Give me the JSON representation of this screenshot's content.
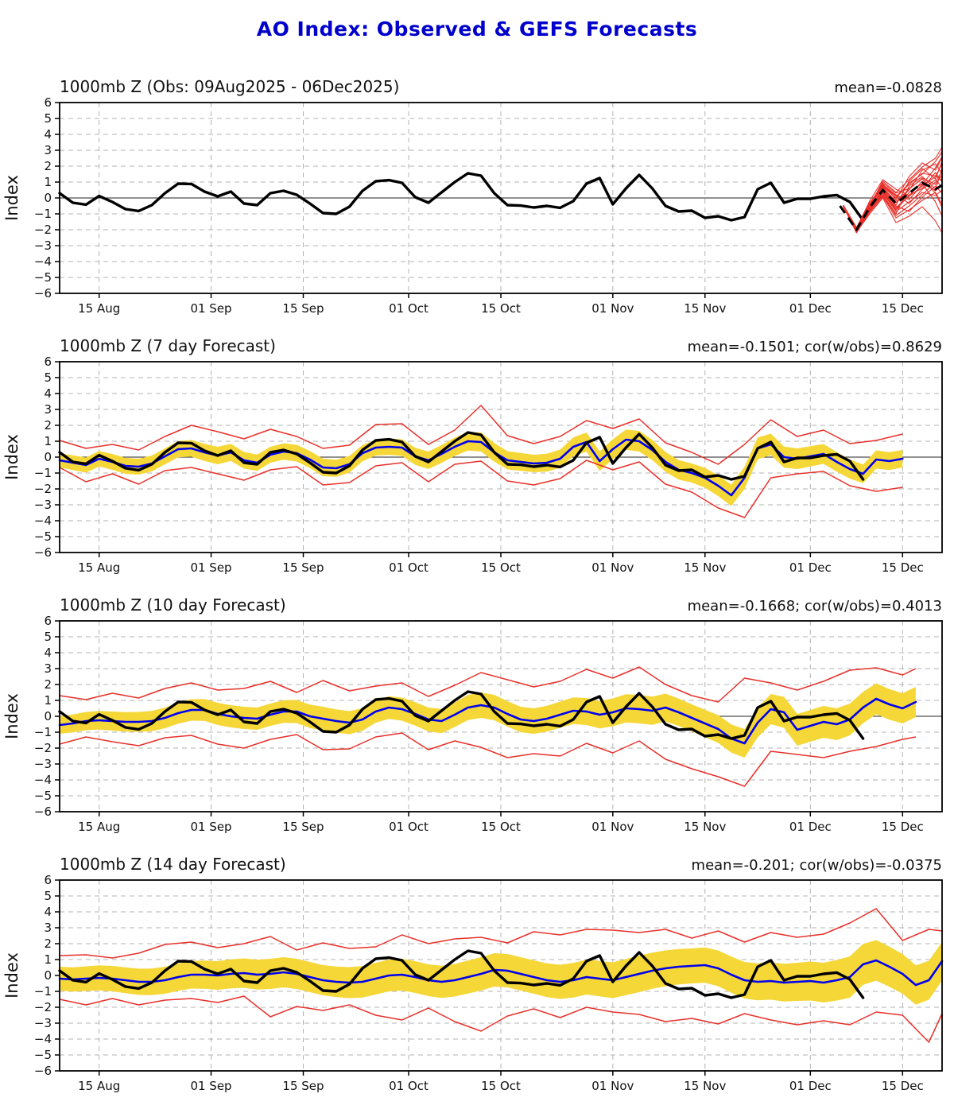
{
  "page": {
    "title": "AO Index: Observed & GEFS Forecasts",
    "title_color": "#0000CC"
  },
  "colors": {
    "observed": "#000000",
    "forecast_mean": "#0000EE",
    "ensemble_member": "#E8302A",
    "envelope": "#E8302A",
    "spread_band": "#F5D738",
    "grid": "#B3B3B3",
    "zero_line": "#222222",
    "border": "#000000"
  },
  "axis": {
    "ylabel": "Index",
    "ylim": [
      -6,
      6
    ],
    "y_ticks": [
      6,
      5,
      4,
      3,
      2,
      1,
      0,
      -1,
      -2,
      -3,
      -4,
      -5,
      -6
    ],
    "x_start_date": "09Aug2025",
    "x_total_days": 134,
    "x_ticks": [
      {
        "day": 6,
        "label": "15 Aug"
      },
      {
        "day": 23,
        "label": "01 Sep"
      },
      {
        "day": 37,
        "label": "15 Sep"
      },
      {
        "day": 53,
        "label": "01 Oct"
      },
      {
        "day": 67,
        "label": "15 Oct"
      },
      {
        "day": 84,
        "label": "01 Nov"
      },
      {
        "day": 98,
        "label": "15 Nov"
      },
      {
        "day": 114,
        "label": "01 Dec"
      },
      {
        "day": 128,
        "label": "15 Dec"
      }
    ]
  },
  "chart_data": {
    "type": "line",
    "x_unit": "days since 09Aug2025",
    "observed": {
      "start": 0,
      "step": 2,
      "values": [
        0.3,
        -0.3,
        -0.42,
        0.12,
        -0.25,
        -0.7,
        -0.82,
        -0.45,
        0.3,
        0.9,
        0.88,
        0.4,
        0.1,
        0.4,
        -0.35,
        -0.45,
        0.3,
        0.45,
        0.2,
        -0.35,
        -0.95,
        -1.0,
        -0.55,
        0.45,
        1.05,
        1.12,
        0.95,
        0.05,
        -0.3,
        0.35,
        1.0,
        1.55,
        1.4,
        0.3,
        -0.45,
        -0.48,
        -0.6,
        -0.5,
        -0.62,
        -0.2,
        0.9,
        1.25,
        -0.4,
        0.6,
        1.45,
        0.6,
        -0.5,
        -0.85,
        -0.8,
        -1.25,
        -1.15,
        -1.4,
        -1.2,
        0.55,
        0.95,
        -0.3,
        -0.05,
        -0.05,
        0.1,
        0.18,
        -0.25,
        -1.4
      ]
    },
    "panels": [
      {
        "id": "obs",
        "title": "1000mb Z (Obs: 09Aug2025 - 06Dec2025)",
        "stats": "mean=-0.0828",
        "end_day": 134,
        "ensemble_mean": {
          "days": [
            118.5,
            121,
            123,
            125,
            127,
            129,
            131,
            133,
            134
          ],
          "values": [
            -0.5,
            -2.0,
            -0.6,
            0.5,
            -0.35,
            0.3,
            0.95,
            0.55,
            0.8
          ]
        },
        "ensemble_members": {
          "days": [
            119,
            121,
            123,
            125,
            127,
            129,
            131,
            133,
            134
          ],
          "members": [
            [
              -0.45,
              -1.85,
              -0.35,
              0.75,
              0.1,
              0.85,
              1.55,
              1.4,
              1.1
            ],
            [
              -0.55,
              -2.1,
              -0.8,
              0.3,
              -0.85,
              -0.25,
              0.35,
              0.15,
              0.5
            ],
            [
              -0.5,
              -1.95,
              -0.5,
              1.05,
              0.35,
              1.15,
              1.95,
              2.5,
              3.2
            ],
            [
              -0.45,
              -2.2,
              -0.9,
              0.1,
              -1.25,
              -0.75,
              -0.15,
              0.35,
              -0.4
            ],
            [
              -0.55,
              -1.9,
              -0.3,
              0.65,
              -0.2,
              0.55,
              1.25,
              0.85,
              1.45
            ],
            [
              -0.5,
              -2.1,
              -0.7,
              0.4,
              -0.6,
              0.1,
              0.75,
              1.35,
              2.15
            ],
            [
              -0.45,
              -2.0,
              -0.45,
              0.9,
              -0.1,
              1.35,
              2.2,
              1.75,
              2.55
            ],
            [
              -0.55,
              -2.15,
              -1.0,
              0.0,
              -1.55,
              -1.15,
              -0.55,
              -1.45,
              -2.2
            ],
            [
              -0.5,
              -1.9,
              -0.2,
              1.15,
              0.55,
              0.15,
              1.05,
              0.45,
              0.85
            ],
            [
              -0.45,
              -2.05,
              -0.6,
              0.5,
              -0.5,
              -0.85,
              0.05,
              0.75,
              0.3
            ],
            [
              -0.55,
              -2.0,
              -0.4,
              0.6,
              -0.3,
              0.5,
              1.75,
              2.15,
              1.55
            ],
            [
              -0.5,
              -2.1,
              -0.75,
              0.2,
              -1.0,
              0.75,
              1.35,
              0.55,
              1.85
            ],
            [
              -0.45,
              -1.95,
              -0.5,
              0.85,
              0.2,
              -0.35,
              0.55,
              1.15,
              0.65
            ],
            [
              -0.55,
              -2.05,
              -0.65,
              0.45,
              -0.7,
              0.35,
              0.9,
              -0.25,
              -1.15
            ],
            [
              -0.5,
              -2.0,
              -0.55,
              0.7,
              0.0,
              0.95,
              1.5,
              2.3,
              2.9
            ],
            [
              -0.5,
              -2.1,
              -0.85,
              0.15,
              -1.1,
              -0.5,
              0.2,
              1.0,
              1.7
            ],
            [
              -0.45,
              -1.9,
              -0.4,
              0.95,
              0.3,
              0.6,
              1.2,
              0.3,
              -0.6
            ],
            [
              -0.55,
              -2.0,
              -0.6,
              0.55,
              -0.45,
              1.05,
              1.85,
              1.2,
              2.3
            ],
            [
              -0.5,
              -2.05,
              -0.7,
              0.35,
              -0.75,
              0.2,
              0.6,
              1.6,
              1.0
            ],
            [
              -0.45,
              -1.95,
              -0.35,
              0.8,
              0.15,
              -0.1,
              0.85,
              1.9,
              2.6
            ]
          ]
        }
      },
      {
        "id": "fc7",
        "title": "1000mb Z (7 day Forecast)",
        "stats": "mean=-0.1501; cor(w/obs)=0.8629",
        "end_day": 128,
        "forecast_mean": {
          "start": 0,
          "step": 2,
          "values": [
            -0.2,
            -0.35,
            -0.5,
            -0.1,
            -0.3,
            -0.55,
            -0.6,
            -0.4,
            0.05,
            0.5,
            0.55,
            0.3,
            0.1,
            0.3,
            -0.2,
            -0.35,
            0.15,
            0.35,
            0.25,
            -0.15,
            -0.65,
            -0.7,
            -0.45,
            0.25,
            0.6,
            0.65,
            0.6,
            0.05,
            -0.2,
            0.2,
            0.65,
            1.0,
            0.95,
            0.3,
            -0.2,
            -0.3,
            -0.4,
            -0.35,
            -0.1,
            0.65,
            0.95,
            -0.25,
            0.5,
            1.1,
            1.0,
            0.45,
            -0.3,
            -0.8,
            -1.0,
            -1.3,
            -1.8,
            -2.4,
            -1.3,
            0.55,
            0.8,
            0.0,
            -0.1,
            0.05,
            0.2,
            -0.3,
            -0.75,
            -1.05,
            -0.15,
            -0.25,
            -0.1
          ]
        },
        "band_halfwidth": {
          "start": 0,
          "step": 8,
          "values": [
            0.45,
            0.5,
            0.5,
            0.55,
            0.5,
            0.55,
            0.5,
            0.55,
            0.6,
            0.55,
            0.6,
            0.65,
            0.6,
            0.7,
            0.65,
            0.6,
            0.55
          ]
        },
        "envelope_upper": {
          "start": 0,
          "step": 4,
          "values": [
            1.05,
            0.55,
            0.8,
            0.45,
            1.3,
            2.0,
            1.6,
            1.15,
            1.75,
            1.3,
            0.55,
            0.75,
            2.05,
            2.1,
            0.8,
            1.7,
            3.25,
            1.35,
            0.85,
            1.3,
            2.3,
            1.8,
            2.4,
            0.9,
            0.3,
            -0.45,
            0.8,
            2.35,
            1.3,
            1.7,
            0.85,
            1.05,
            1.45
          ]
        },
        "envelope_lower": {
          "start": 0,
          "step": 4,
          "values": [
            -0.65,
            -1.55,
            -1.05,
            -1.7,
            -0.85,
            -0.65,
            -1.05,
            -1.45,
            -0.8,
            -0.6,
            -1.75,
            -1.6,
            -0.55,
            -0.35,
            -1.55,
            -0.45,
            -0.25,
            -1.5,
            -1.75,
            -1.35,
            -0.2,
            -0.8,
            -0.3,
            -1.7,
            -2.2,
            -3.2,
            -3.8,
            -1.3,
            -1.05,
            -0.9,
            -1.8,
            -2.15,
            -1.9
          ]
        }
      },
      {
        "id": "fc10",
        "title": "1000mb Z (10 day Forecast)",
        "stats": "mean=-0.1668; cor(w/obs)=0.4013",
        "end_day": 130,
        "forecast_mean": {
          "start": 0,
          "step": 2,
          "values": [
            -0.55,
            -0.45,
            -0.3,
            -0.25,
            -0.3,
            -0.35,
            -0.35,
            -0.3,
            -0.1,
            0.2,
            0.4,
            0.4,
            0.15,
            0.0,
            -0.1,
            -0.15,
            0.1,
            0.3,
            0.3,
            0.0,
            -0.15,
            -0.3,
            -0.4,
            -0.2,
            0.3,
            0.55,
            0.45,
            0.15,
            -0.2,
            -0.3,
            0.1,
            0.55,
            0.7,
            0.55,
            0.15,
            -0.2,
            -0.3,
            -0.15,
            0.1,
            0.35,
            0.3,
            0.1,
            0.25,
            0.5,
            0.45,
            0.35,
            0.55,
            0.25,
            -0.1,
            -0.45,
            -0.8,
            -1.4,
            -1.7,
            -0.4,
            0.45,
            0.25,
            -0.85,
            -0.6,
            -0.35,
            -0.5,
            -0.2,
            0.55,
            1.1,
            0.75,
            0.5,
            0.9
          ]
        },
        "band_halfwidth": {
          "start": 0,
          "step": 8,
          "values": [
            0.55,
            0.6,
            0.65,
            0.7,
            0.7,
            0.75,
            0.7,
            0.75,
            0.8,
            0.8,
            0.85,
            0.9,
            0.85,
            0.9,
            1.0,
            1.0,
            0.95
          ]
        },
        "envelope_upper": {
          "start": 0,
          "step": 4,
          "values": [
            1.3,
            1.05,
            1.45,
            1.15,
            1.75,
            2.1,
            1.65,
            1.75,
            2.2,
            1.5,
            2.25,
            1.6,
            1.9,
            2.1,
            1.25,
            1.95,
            2.75,
            2.3,
            1.85,
            2.2,
            2.95,
            2.4,
            3.1,
            2.0,
            1.3,
            0.9,
            2.4,
            2.1,
            1.65,
            2.2,
            2.9,
            3.05,
            2.6,
            3.0
          ]
        },
        "envelope_lower": {
          "start": 0,
          "step": 4,
          "values": [
            -1.75,
            -1.3,
            -1.6,
            -1.85,
            -1.35,
            -1.2,
            -1.75,
            -2.0,
            -1.45,
            -1.15,
            -2.1,
            -2.05,
            -1.3,
            -1.05,
            -2.1,
            -1.55,
            -1.95,
            -2.6,
            -2.35,
            -2.5,
            -1.7,
            -2.3,
            -1.55,
            -2.7,
            -3.3,
            -3.8,
            -4.4,
            -2.2,
            -2.4,
            -2.6,
            -2.2,
            -1.9,
            -1.45,
            -1.3
          ]
        }
      },
      {
        "id": "fc14",
        "title": "1000mb Z (14 day Forecast)",
        "stats": "mean=-0.201; cor(w/obs)=-0.0375",
        "end_day": 134,
        "forecast_mean": {
          "start": 0,
          "step": 2,
          "values": [
            -0.2,
            -0.25,
            -0.2,
            -0.15,
            -0.2,
            -0.3,
            -0.4,
            -0.4,
            -0.3,
            -0.1,
            0.05,
            0.05,
            0.0,
            0.1,
            0.15,
            0.05,
            0.1,
            0.2,
            0.1,
            -0.1,
            -0.3,
            -0.4,
            -0.45,
            -0.4,
            -0.2,
            0.0,
            0.05,
            -0.1,
            -0.3,
            -0.4,
            -0.3,
            -0.1,
            0.1,
            0.35,
            0.3,
            0.1,
            -0.1,
            -0.3,
            -0.4,
            -0.3,
            -0.1,
            -0.2,
            -0.3,
            -0.1,
            0.1,
            0.3,
            0.45,
            0.55,
            0.6,
            0.65,
            0.45,
            0.05,
            -0.3,
            -0.4,
            -0.35,
            -0.45,
            -0.4,
            -0.35,
            -0.45,
            -0.3,
            -0.1,
            0.7,
            0.95,
            0.55,
            0.1,
            -0.6,
            -0.3,
            0.9
          ]
        },
        "band_halfwidth": {
          "start": 0,
          "step": 8,
          "values": [
            0.75,
            0.8,
            0.85,
            0.9,
            0.95,
            0.95,
            1.0,
            1.0,
            1.05,
            1.05,
            1.1,
            1.15,
            1.1,
            1.15,
            1.2,
            1.3,
            1.25,
            1.2
          ]
        },
        "envelope_upper": {
          "start": 0,
          "step": 4,
          "values": [
            1.25,
            1.3,
            1.1,
            1.4,
            1.95,
            2.1,
            1.75,
            2.0,
            2.45,
            1.6,
            2.05,
            1.7,
            1.8,
            2.55,
            2.0,
            2.3,
            2.4,
            2.05,
            2.75,
            2.55,
            2.9,
            2.85,
            2.7,
            2.9,
            2.35,
            2.8,
            2.1,
            2.7,
            2.4,
            2.6,
            3.3,
            4.2,
            2.2,
            2.9,
            2.8
          ]
        },
        "envelope_lower": {
          "start": 0,
          "step": 4,
          "values": [
            -1.5,
            -1.85,
            -1.45,
            -1.85,
            -1.55,
            -1.45,
            -1.7,
            -1.3,
            -2.6,
            -1.95,
            -2.2,
            -1.85,
            -2.5,
            -2.8,
            -2.05,
            -2.9,
            -3.5,
            -2.55,
            -2.1,
            -2.65,
            -2.0,
            -2.3,
            -2.45,
            -2.9,
            -2.7,
            -3.05,
            -2.4,
            -2.8,
            -3.1,
            -2.85,
            -3.1,
            -2.3,
            -2.5,
            -4.2,
            -2.4
          ]
        }
      }
    ]
  }
}
